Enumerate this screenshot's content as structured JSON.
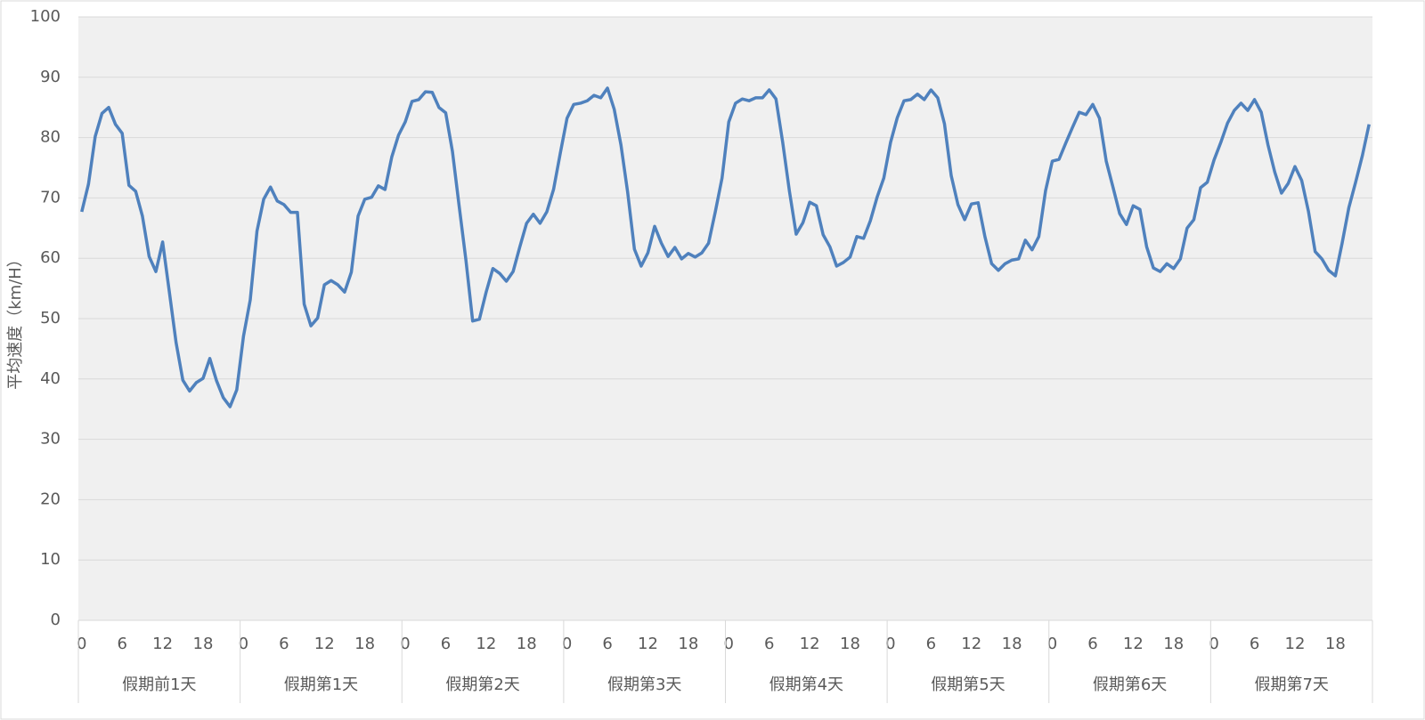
{
  "chart_data": {
    "type": "line",
    "y_label": "平均速度（km/H）",
    "ylim": [
      0,
      100
    ],
    "yticks": [
      0,
      10,
      20,
      30,
      40,
      50,
      60,
      70,
      80,
      90,
      100
    ],
    "grid": true,
    "color": "#4f81bd",
    "category_groups": [
      "假期前1天",
      "假期第1天",
      "假期第2天",
      "假期第3天",
      "假期第4天",
      "假期第5天",
      "假期第6天",
      "假期第7天"
    ],
    "categories": [
      "0",
      null,
      null,
      null,
      null,
      null,
      "6",
      null,
      null,
      null,
      null,
      null,
      "12",
      null,
      null,
      null,
      null,
      null,
      "18",
      null,
      null,
      null,
      null,
      null,
      "0",
      null,
      null,
      null,
      null,
      null,
      "6",
      null,
      null,
      null,
      null,
      null,
      "12",
      null,
      null,
      null,
      null,
      null,
      "18",
      null,
      null,
      null,
      null,
      null,
      "0",
      null,
      null,
      null,
      null,
      null,
      "6",
      null,
      null,
      null,
      null,
      null,
      "12",
      null,
      null,
      null,
      null,
      null,
      "18",
      null,
      null,
      null,
      null,
      null,
      "0",
      null,
      null,
      null,
      null,
      null,
      "6",
      null,
      null,
      null,
      null,
      null,
      "12",
      null,
      null,
      null,
      null,
      null,
      "18",
      null,
      null,
      null,
      null,
      null,
      "0",
      null,
      null,
      null,
      null,
      null,
      "6",
      null,
      null,
      null,
      null,
      null,
      "12",
      null,
      null,
      null,
      null,
      null,
      "18",
      null,
      null,
      null,
      null,
      null,
      "0",
      null,
      null,
      null,
      null,
      null,
      "6",
      null,
      null,
      null,
      null,
      null,
      "12",
      null,
      null,
      null,
      null,
      null,
      "18",
      null,
      null,
      null,
      null,
      null,
      "0",
      null,
      null,
      null,
      null,
      null,
      "6",
      null,
      null,
      null,
      null,
      null,
      "12",
      null,
      null,
      null,
      null,
      null,
      "18",
      null,
      null,
      null,
      null,
      null,
      "0",
      null,
      null,
      null,
      null,
      null,
      "6",
      null,
      null,
      null,
      null,
      null,
      "12",
      null,
      null,
      null,
      null,
      null,
      "18",
      null,
      null,
      null,
      null,
      null
    ],
    "values": [
      67.7,
      72.3,
      80.2,
      84,
      85,
      82.2,
      80.7,
      72.1,
      71.1,
      67,
      60.3,
      57.8,
      62.7,
      54.4,
      46,
      39.8,
      38,
      39.4,
      40.1,
      43.4,
      39.7,
      36.9,
      35.4,
      38.2,
      47.1,
      53.1,
      64.5,
      69.8,
      71.8,
      69.5,
      68.9,
      67.6,
      67.6,
      52.4,
      48.8,
      50.1,
      55.6,
      56.3,
      55.6,
      54.4,
      57.7,
      67,
      69.8,
      70.1,
      72,
      71.4,
      76.8,
      80.4,
      82.6,
      86,
      86.3,
      87.6,
      87.5,
      85,
      84.1,
      77.7,
      68.6,
      59.7,
      49.6,
      49.9,
      54.4,
      58.3,
      57.5,
      56.2,
      57.8,
      61.9,
      65.8,
      67.3,
      65.8,
      67.7,
      71.4,
      77.4,
      83.2,
      85.5,
      85.7,
      86.1,
      87,
      86.6,
      88.2,
      84.7,
      78.8,
      70.9,
      61.5,
      58.7,
      60.9,
      65.3,
      62.5,
      60.3,
      61.8,
      59.9,
      60.8,
      60.2,
      60.9,
      62.5,
      67.7,
      73.3,
      82.6,
      85.7,
      86.4,
      86.1,
      86.6,
      86.6,
      87.9,
      86.4,
      79.2,
      71.1,
      64,
      65.9,
      69.3,
      68.7,
      63.9,
      61.9,
      58.7,
      59.3,
      60.2,
      63.6,
      63.3,
      66.2,
      70.1,
      73.3,
      79.2,
      83.3,
      86.1,
      86.3,
      87.2,
      86.3,
      87.9,
      86.6,
      82.3,
      73.7,
      68.9,
      66.4,
      69,
      69.2,
      63.6,
      59.1,
      58,
      59.1,
      59.7,
      59.9,
      63,
      61.4,
      63.6,
      71.2,
      76.1,
      76.4,
      79.1,
      81.7,
      84.2,
      83.8,
      85.5,
      83.2,
      76.1,
      71.8,
      67.4,
      65.6,
      68.7,
      68.1,
      61.9,
      58.4,
      57.8,
      59.1,
      58.3,
      59.9,
      65,
      66.4,
      71.7,
      72.6,
      76.3,
      79.2,
      82.4,
      84.5,
      85.7,
      84.5,
      86.3,
      84.2,
      78.8,
      74.3,
      70.8,
      72.4,
      75.2,
      72.9,
      67.8,
      61.1,
      59.9,
      58,
      57.1,
      62.5,
      68.4,
      72.6,
      77,
      82.2
    ]
  }
}
